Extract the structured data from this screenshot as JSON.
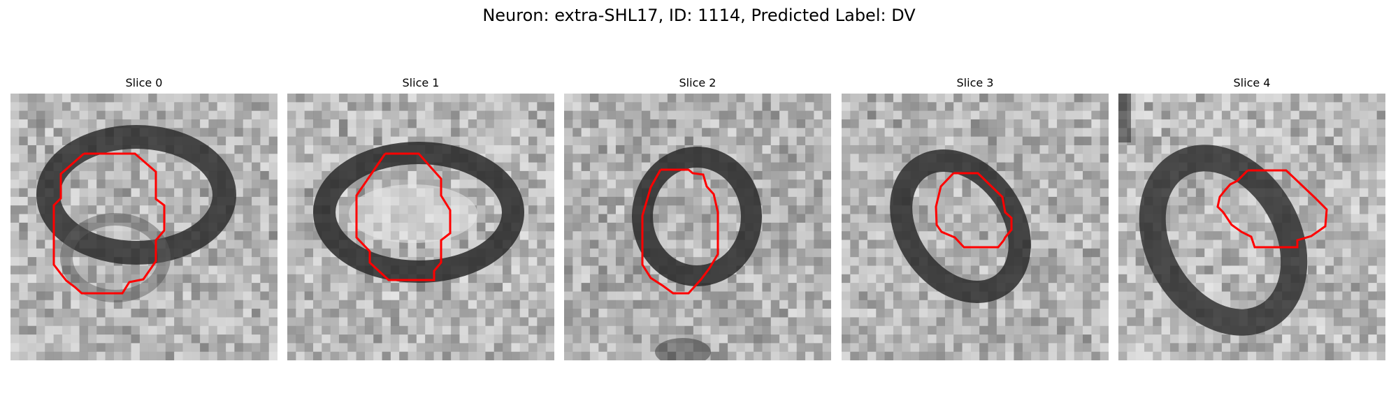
{
  "figure": {
    "title": "Neuron: extra-SHL17, ID: 1114, Predicted Label: DV"
  },
  "colors": {
    "contour": "#ff0000",
    "background": "#ffffff"
  },
  "slices": [
    {
      "label": "Slice 0"
    },
    {
      "label": "Slice 1"
    },
    {
      "label": "Slice 2"
    },
    {
      "label": "Slice 3"
    },
    {
      "label": "Slice 4"
    }
  ]
}
